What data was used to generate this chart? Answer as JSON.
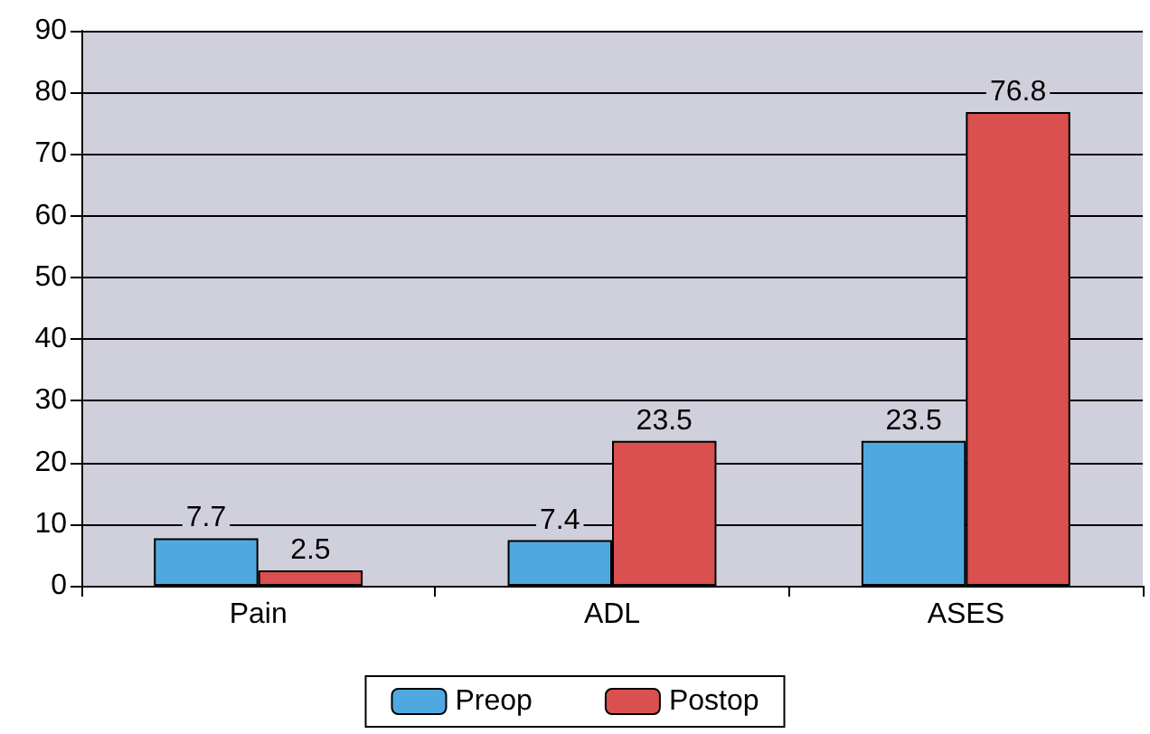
{
  "chart_data": {
    "type": "bar",
    "categories": [
      "Pain",
      "ADL",
      "ASES"
    ],
    "series": [
      {
        "name": "Preop",
        "color": "#4fa9e0",
        "values": [
          7.7,
          7.4,
          23.5
        ]
      },
      {
        "name": "Postop",
        "color": "#d9504f",
        "values": [
          2.5,
          23.5,
          76.8
        ]
      }
    ],
    "ylim": [
      0,
      90
    ],
    "yticks": [
      0,
      10,
      20,
      30,
      40,
      50,
      60,
      70,
      80,
      90
    ],
    "grid": "y",
    "legend": "bottom",
    "data_labels": true
  }
}
